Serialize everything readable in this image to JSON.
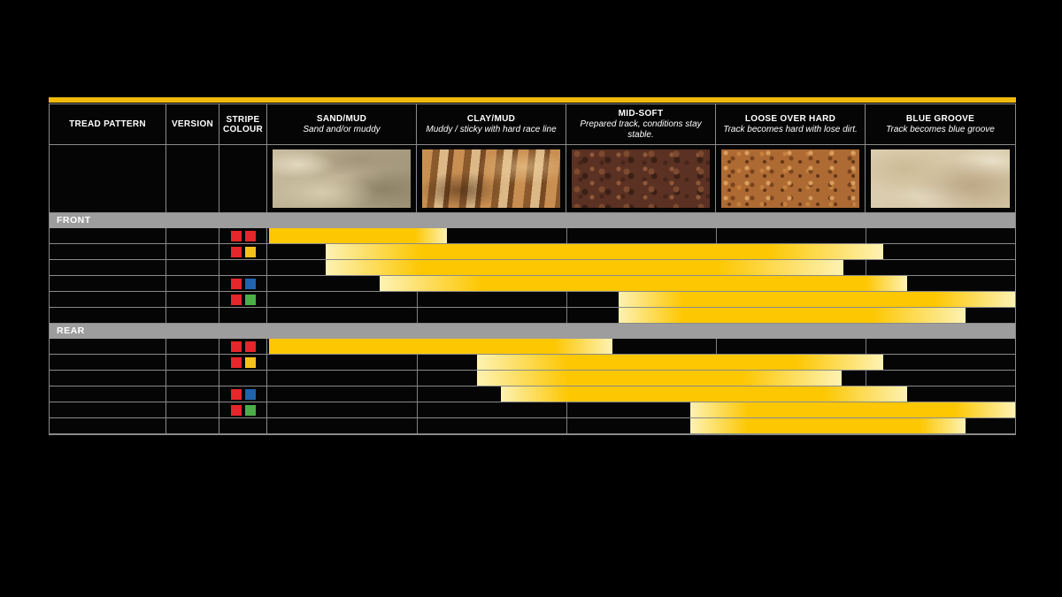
{
  "accent": {
    "topline_yellow": "#f2ba0c",
    "bar_yellow": "#fdc702",
    "bar_pale_yellow": "#fdf2b3",
    "section_gray": "#9d9d9d",
    "grid_gray": "#8a8a8a"
  },
  "stripe_palette": {
    "red": "#e5262a",
    "yellow": "#f7c11c",
    "blue": "#1f64ad",
    "green": "#4cae47"
  },
  "table": {
    "headers": [
      {
        "title": "TREAD PATTERN",
        "subtitle": ""
      },
      {
        "title": "VERSION",
        "subtitle": ""
      },
      {
        "title": "STRIPE COLOUR",
        "subtitle": ""
      },
      {
        "title": "SAND/MUD",
        "subtitle": "Sand and/or muddy"
      },
      {
        "title": "CLAY/MUD",
        "subtitle": "Muddy / sticky with hard race line"
      },
      {
        "title": "MID-SOFT",
        "subtitle": "Prepared track, conditions stay stable."
      },
      {
        "title": "LOOSE OVER HARD",
        "subtitle": "Track becomes hard with lose dirt."
      },
      {
        "title": "BLUE GROOVE",
        "subtitle": "Track becomes blue groove"
      }
    ],
    "textures": [
      {
        "name": "sand-mud-photo",
        "style": "sand"
      },
      {
        "name": "clay-mud-photo",
        "style": "clay"
      },
      {
        "name": "mid-soft-photo",
        "style": "midsoft"
      },
      {
        "name": "loose-over-hard-photo",
        "style": "loose"
      },
      {
        "name": "blue-groove-photo",
        "style": "blue"
      }
    ],
    "sections": [
      {
        "label": "FRONT",
        "rows": [
          {
            "stripes": [
              "red",
              "red"
            ],
            "range": [
              0.01,
              0.01,
              0.99,
              1.2
            ]
          },
          {
            "stripes": [
              "red",
              "yellow"
            ],
            "range": [
              0.39,
              1.03,
              3.35,
              4.12
            ]
          },
          {
            "stripes": [],
            "range": [
              0.39,
              1.03,
              3.01,
              3.85
            ]
          },
          {
            "stripes": [
              "red",
              "blue"
            ],
            "range": [
              0.75,
              1.43,
              4.0,
              4.28
            ]
          },
          {
            "stripes": [
              "red",
              "green"
            ],
            "range": [
              2.35,
              2.78,
              4.46,
              5.0
            ]
          },
          {
            "stripes": [],
            "range": [
              2.35,
              2.78,
              4.04,
              4.67
            ]
          }
        ]
      },
      {
        "label": "REAR",
        "rows": [
          {
            "stripes": [
              "red",
              "red"
            ],
            "range": [
              0.01,
              0.01,
              1.92,
              2.31
            ]
          },
          {
            "stripes": [
              "red",
              "yellow"
            ],
            "range": [
              1.4,
              2.01,
              3.54,
              4.12
            ]
          },
          {
            "stripes": [],
            "range": [
              1.4,
              2.01,
              3.17,
              3.84
            ]
          },
          {
            "stripes": [
              "red",
              "blue"
            ],
            "range": [
              1.56,
              2.01,
              3.72,
              4.28
            ]
          },
          {
            "stripes": [
              "red",
              "green"
            ],
            "range": [
              2.83,
              3.22,
              4.59,
              5.0
            ]
          },
          {
            "stripes": [],
            "range": [
              2.83,
              3.22,
              4.36,
              4.67
            ]
          }
        ]
      }
    ]
  },
  "chart_data": {
    "type": "bar",
    "subtype": "horizontal-range-bars",
    "categories": [
      "SAND/MUD",
      "CLAY/MUD",
      "MID-SOFT",
      "LOOSE OVER HARD",
      "BLUE GROOVE"
    ],
    "axis_note": "ranges measured in condition-column units, 0 = left edge of SAND/MUD, 5 = right edge of BLUE GROOVE; values are [start, fade_in_end, solid_end, end]",
    "series": [
      {
        "name": "FRONT red/red",
        "values": [
          0.01,
          0.01,
          0.99,
          1.2
        ]
      },
      {
        "name": "FRONT red/yellow",
        "values": [
          0.39,
          1.03,
          3.35,
          4.12
        ]
      },
      {
        "name": "FRONT (no stripe row 3)",
        "values": [
          0.39,
          1.03,
          3.01,
          3.85
        ]
      },
      {
        "name": "FRONT red/blue",
        "values": [
          0.75,
          1.43,
          4.0,
          4.28
        ]
      },
      {
        "name": "FRONT red/green",
        "values": [
          2.35,
          2.78,
          4.46,
          5.0
        ]
      },
      {
        "name": "FRONT (no stripe row 6)",
        "values": [
          2.35,
          2.78,
          4.04,
          4.67
        ]
      },
      {
        "name": "REAR red/red",
        "values": [
          0.01,
          0.01,
          1.92,
          2.31
        ]
      },
      {
        "name": "REAR red/yellow",
        "values": [
          1.4,
          2.01,
          3.54,
          4.12
        ]
      },
      {
        "name": "REAR (no stripe row 3)",
        "values": [
          1.4,
          2.01,
          3.17,
          3.84
        ]
      },
      {
        "name": "REAR red/blue",
        "values": [
          1.56,
          2.01,
          3.72,
          4.28
        ]
      },
      {
        "name": "REAR red/green",
        "values": [
          2.83,
          3.22,
          4.59,
          5.0
        ]
      },
      {
        "name": "REAR (no stripe row 6)",
        "values": [
          2.83,
          3.22,
          4.36,
          4.67
        ]
      }
    ],
    "legend_position": "none",
    "grid": true
  }
}
